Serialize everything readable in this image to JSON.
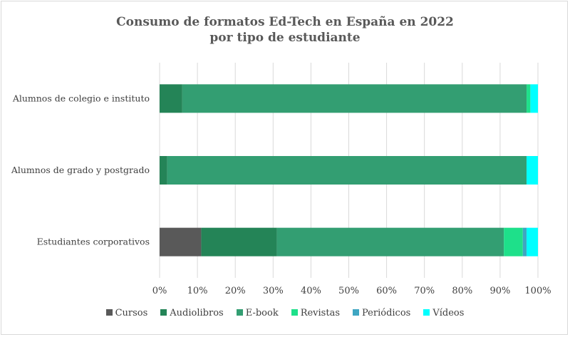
{
  "chart_data": {
    "type": "bar",
    "orientation": "horizontal",
    "stacked": "100%",
    "title": "Consumo de formatos Ed-Tech en España en 2022 por tipo de estudiante",
    "title_lines": [
      "Consumo de formatos Ed-Tech en España en 2022",
      "por tipo de estudiante"
    ],
    "xlabel": "",
    "ylabel": "",
    "xlim": [
      0,
      100
    ],
    "x_ticks": [
      "0%",
      "10%",
      "20%",
      "30%",
      "40%",
      "50%",
      "60%",
      "70%",
      "80%",
      "90%",
      "100%"
    ],
    "grid": true,
    "legend_position": "bottom",
    "categories": [
      "Alumnos de colegio e instituto",
      "Alumnos de grado y postgrado",
      "Estudiantes corporativos"
    ],
    "series": [
      {
        "name": "Cursos",
        "color": "#595959",
        "values": [
          0,
          0,
          11
        ]
      },
      {
        "name": "Audiolibros",
        "color": "#248457",
        "values": [
          6,
          2,
          20
        ]
      },
      {
        "name": "E-book",
        "color": "#339E72",
        "values": [
          91,
          95,
          60
        ]
      },
      {
        "name": "Revistas",
        "color": "#1EE08A",
        "values": [
          1,
          0,
          5
        ]
      },
      {
        "name": "Periódicos",
        "color": "#3FA6C2",
        "values": [
          0,
          0,
          1
        ]
      },
      {
        "name": "Vídeos",
        "color": "#00FFFF",
        "values": [
          2,
          3,
          3
        ]
      }
    ]
  }
}
